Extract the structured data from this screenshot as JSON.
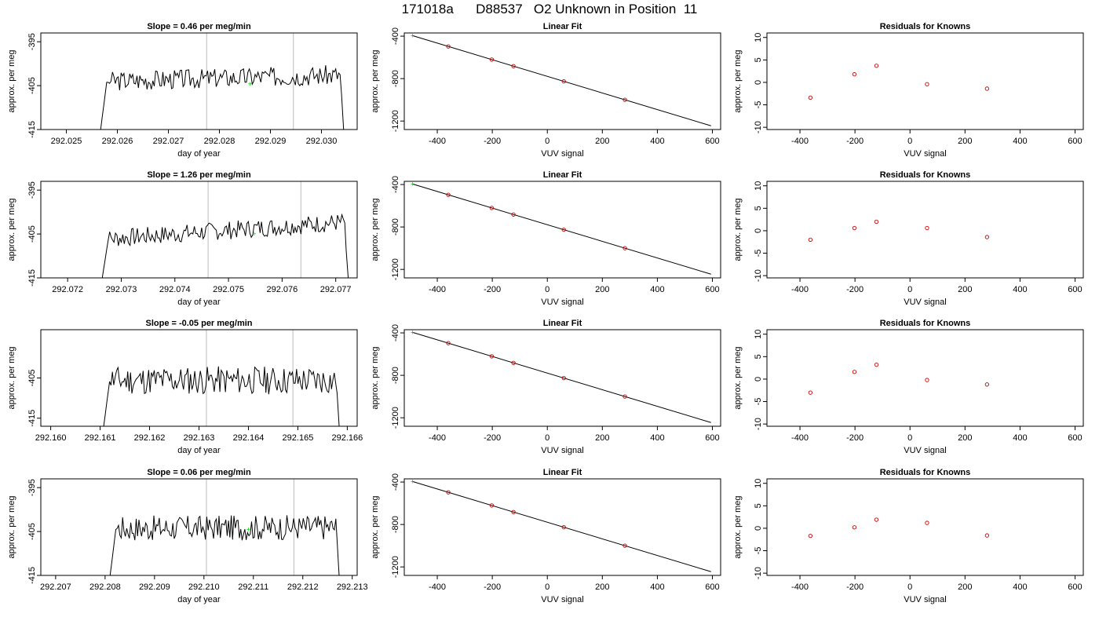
{
  "title": "171018a      D88537   O2 Unknown in Position  11",
  "colors": {
    "series": "#000000",
    "fit": "#000000",
    "unknown": "#00cc00",
    "known": "#cc0000",
    "vline": "#bbbbbb"
  },
  "chart_data": [
    {
      "type": "line",
      "row": 1,
      "column": "time-series",
      "title": "Slope =  0.46  per meg/min",
      "xlabel": "day of year",
      "ylabel": "approx. per meg",
      "xlim": [
        292.0245,
        292.0307
      ],
      "ylim": [
        -415,
        -393
      ],
      "xticks": [
        292.025,
        292.026,
        292.027,
        292.028,
        292.029,
        292.03
      ],
      "xtick_labels": [
        "292.025",
        "292.026",
        "292.027",
        "292.028",
        "292.029",
        "292.030"
      ],
      "yticks": [
        -395,
        -405,
        -415
      ],
      "ytick_labels": [
        "-395",
        "-405",
        "-415"
      ],
      "trace_start": 292.02565,
      "trace_end": 292.03045,
      "plateau_level": -404.0,
      "plateau_rise": 1.5,
      "noise": 1.4,
      "seed": 3,
      "vlines": [
        292.02775,
        292.02945
      ],
      "unknown_marker": {
        "x": 292.0286,
        "y": -404.6
      }
    },
    {
      "type": "line",
      "row": 1,
      "column": "linear-fit",
      "title": "Linear Fit",
      "xlabel": "VUV signal",
      "ylabel": "approx. per meg",
      "xlim": [
        -520,
        630
      ],
      "ylim": [
        -1280,
        -370
      ],
      "xticks": [
        -400,
        -200,
        0,
        200,
        400,
        600
      ],
      "xtick_labels": [
        "-400",
        "-200",
        "0",
        "200",
        "400",
        "600"
      ],
      "yticks": [
        -400,
        -800,
        -1200
      ],
      "ytick_labels": [
        "-400",
        "-800",
        "-1200"
      ],
      "fit_line": {
        "x": [
          -490,
          595
        ],
        "y": [
          -395,
          -1245
        ]
      },
      "known_points": {
        "x": [
          -360,
          -202,
          -123,
          60,
          282
        ],
        "y": [
          -497,
          -621,
          -683,
          -826,
          -1000
        ]
      },
      "unknown_point": {
        "x": -490,
        "y": -395
      }
    },
    {
      "type": "scatter",
      "row": 1,
      "column": "residuals",
      "title": "Residuals for Knowns",
      "xlabel": "VUV signal",
      "ylabel": "approx. per meg",
      "xlim": [
        -520,
        630
      ],
      "ylim": [
        -10.5,
        11
      ],
      "xticks": [
        -400,
        -200,
        0,
        200,
        400,
        600
      ],
      "xtick_labels": [
        "-400",
        "-200",
        "0",
        "200",
        "400",
        "600"
      ],
      "yticks": [
        10,
        5,
        0,
        -5,
        -10
      ],
      "ytick_labels": [
        "10",
        "5",
        "0",
        "-5",
        "-10"
      ],
      "points": {
        "x": [
          -362,
          -202,
          -122,
          62,
          280
        ],
        "y": [
          -3.4,
          1.8,
          3.7,
          -0.4,
          -1.4
        ]
      }
    },
    {
      "type": "line",
      "row": 2,
      "column": "time-series",
      "title": "Slope =  1.26  per meg/min",
      "xlabel": "day of year",
      "ylabel": "approx. per meg",
      "xlim": [
        292.0715,
        292.0774
      ],
      "ylim": [
        -415,
        -393
      ],
      "xticks": [
        292.072,
        292.073,
        292.074,
        292.075,
        292.076,
        292.077
      ],
      "xtick_labels": [
        "292.072",
        "292.073",
        "292.074",
        "292.075",
        "292.076",
        "292.077"
      ],
      "yticks": [
        -395,
        -405,
        -415
      ],
      "ytick_labels": [
        "-395",
        "-405",
        "-415"
      ],
      "trace_start": 292.07262,
      "trace_end": 292.07725,
      "plateau_level": -406.2,
      "plateau_rise": 4.0,
      "noise": 1.3,
      "seed": 7,
      "vlines": [
        292.07462,
        292.07635
      ],
      "unknown_marker": {
        "x": 292.07548,
        "y": -405.0
      }
    },
    {
      "type": "line",
      "row": 2,
      "column": "linear-fit",
      "title": "Linear Fit",
      "xlabel": "VUV signal",
      "ylabel": "approx. per meg",
      "xlim": [
        -520,
        630
      ],
      "ylim": [
        -1280,
        -370
      ],
      "xticks": [
        -400,
        -200,
        0,
        200,
        400,
        600
      ],
      "xtick_labels": [
        "-400",
        "-200",
        "0",
        "200",
        "400",
        "600"
      ],
      "yticks": [
        -400,
        -800,
        -1200
      ],
      "ytick_labels": [
        "-400",
        "-800",
        "-1200"
      ],
      "fit_line": {
        "x": [
          -490,
          595
        ],
        "y": [
          -395,
          -1245
        ]
      },
      "known_points": {
        "x": [
          -360,
          -202,
          -123,
          60,
          282
        ],
        "y": [
          -497,
          -621,
          -683,
          -826,
          -1000
        ]
      },
      "unknown_point": {
        "x": -490,
        "y": -395
      }
    },
    {
      "type": "scatter",
      "row": 2,
      "column": "residuals",
      "title": "Residuals for Knowns",
      "xlabel": "VUV signal",
      "ylabel": "approx. per meg",
      "xlim": [
        -520,
        630
      ],
      "ylim": [
        -10.5,
        11
      ],
      "xticks": [
        -400,
        -200,
        0,
        200,
        400,
        600
      ],
      "xtick_labels": [
        "-400",
        "-200",
        "0",
        "200",
        "400",
        "600"
      ],
      "yticks": [
        10,
        5,
        0,
        -5,
        -10
      ],
      "ytick_labels": [
        "10",
        "5",
        "0",
        "-5",
        "-10"
      ],
      "points": {
        "x": [
          -362,
          -202,
          -122,
          62,
          280
        ],
        "y": [
          -2.0,
          0.6,
          2.0,
          0.6,
          -1.4
        ]
      }
    },
    {
      "type": "line",
      "row": 3,
      "column": "time-series",
      "title": "Slope =  -0.05  per meg/min",
      "xlabel": "day of year",
      "ylabel": "approx. per meg",
      "xlim": [
        292.1598,
        292.1662
      ],
      "ylim": [
        -417,
        -393
      ],
      "xticks": [
        292.16,
        292.161,
        292.162,
        292.163,
        292.164,
        292.165,
        292.166
      ],
      "xtick_labels": [
        "292.160",
        "292.161",
        "292.162",
        "292.163",
        "292.164",
        "292.165",
        "292.166"
      ],
      "yticks": [
        -405,
        -415
      ],
      "ytick_labels": [
        "-405",
        "-415"
      ],
      "trace_start": 292.16105,
      "trace_end": 292.16585,
      "plateau_level": -405.6,
      "plateau_rise": 0.0,
      "noise": 2.2,
      "seed": 11,
      "vlines": [
        292.16315,
        292.1649
      ],
      "unknown_marker": {
        "x": 292.16402,
        "y": -405.8
      }
    },
    {
      "type": "line",
      "row": 3,
      "column": "linear-fit",
      "title": "Linear Fit",
      "xlabel": "VUV signal",
      "ylabel": "approx. per meg",
      "xlim": [
        -520,
        630
      ],
      "ylim": [
        -1280,
        -370
      ],
      "xticks": [
        -400,
        -200,
        0,
        200,
        400,
        600
      ],
      "xtick_labels": [
        "-400",
        "-200",
        "0",
        "200",
        "400",
        "600"
      ],
      "yticks": [
        -400,
        -800,
        -1200
      ],
      "ytick_labels": [
        "-400",
        "-800",
        "-1200"
      ],
      "fit_line": {
        "x": [
          -490,
          595
        ],
        "y": [
          -395,
          -1245
        ]
      },
      "known_points": {
        "x": [
          -360,
          -202,
          -123,
          60,
          282
        ],
        "y": [
          -497,
          -621,
          -683,
          -826,
          -1000
        ]
      },
      "unknown_point": {
        "x": -490,
        "y": -395
      }
    },
    {
      "type": "scatter",
      "row": 3,
      "column": "residuals",
      "title": "Residuals for Knowns",
      "xlabel": "VUV signal",
      "ylabel": "approx. per meg",
      "xlim": [
        -520,
        630
      ],
      "ylim": [
        -10.5,
        11
      ],
      "xticks": [
        -400,
        -200,
        0,
        200,
        400,
        600
      ],
      "xtick_labels": [
        "-400",
        "-200",
        "0",
        "200",
        "400",
        "600"
      ],
      "yticks": [
        10,
        5,
        0,
        -5,
        -10
      ],
      "ytick_labels": [
        "10",
        "5",
        "0",
        "-5",
        "-10"
      ],
      "points": {
        "x": [
          -362,
          -202,
          -122,
          62,
          280
        ],
        "y": [
          -3.0,
          1.6,
          3.2,
          -0.2,
          -1.2
        ]
      }
    },
    {
      "type": "line",
      "row": 4,
      "column": "time-series",
      "title": "Slope =  0.06  per meg/min",
      "xlabel": "day of year",
      "ylabel": "approx. per meg",
      "xlim": [
        292.2067,
        292.2131
      ],
      "ylim": [
        -415,
        -393
      ],
      "xticks": [
        292.207,
        292.208,
        292.209,
        292.21,
        292.211,
        292.212,
        292.213
      ],
      "xtick_labels": [
        "292.207",
        "292.208",
        "292.209",
        "292.210",
        "292.211",
        "292.212",
        "292.213"
      ],
      "yticks": [
        -395,
        -405,
        -415
      ],
      "ytick_labels": [
        "-395",
        "-405",
        "-415"
      ],
      "trace_start": 292.20808,
      "trace_end": 292.21275,
      "plateau_level": -404.3,
      "plateau_rise": 0.3,
      "noise": 1.8,
      "seed": 17,
      "vlines": [
        292.21005,
        292.21182
      ],
      "unknown_marker": {
        "x": 292.2109,
        "y": -404.5
      }
    },
    {
      "type": "line",
      "row": 4,
      "column": "linear-fit",
      "title": "Linear Fit",
      "xlabel": "VUV signal",
      "ylabel": "approx. per meg",
      "xlim": [
        -520,
        630
      ],
      "ylim": [
        -1280,
        -370
      ],
      "xticks": [
        -400,
        -200,
        0,
        200,
        400,
        600
      ],
      "xtick_labels": [
        "-400",
        "-200",
        "0",
        "200",
        "400",
        "600"
      ],
      "yticks": [
        -400,
        -800,
        -1200
      ],
      "ytick_labels": [
        "-400",
        "-800",
        "-1200"
      ],
      "fit_line": {
        "x": [
          -490,
          595
        ],
        "y": [
          -395,
          -1245
        ]
      },
      "known_points": {
        "x": [
          -360,
          -202,
          -123,
          60,
          282
        ],
        "y": [
          -497,
          -621,
          -683,
          -826,
          -1000
        ]
      },
      "unknown_point": {
        "x": -490,
        "y": -395
      }
    },
    {
      "type": "scatter",
      "row": 4,
      "column": "residuals",
      "title": "Residuals for Knowns",
      "xlabel": "VUV signal",
      "ylabel": "approx. per meg",
      "xlim": [
        -520,
        630
      ],
      "ylim": [
        -10.5,
        11
      ],
      "xticks": [
        -400,
        -200,
        0,
        200,
        400,
        600
      ],
      "xtick_labels": [
        "-400",
        "-200",
        "0",
        "200",
        "400",
        "600"
      ],
      "yticks": [
        10,
        5,
        0,
        -5,
        -10
      ],
      "ytick_labels": [
        "10",
        "5",
        "0",
        "-5",
        "-10"
      ],
      "points": {
        "x": [
          -362,
          -202,
          -122,
          62,
          280
        ],
        "y": [
          -1.7,
          0.2,
          1.9,
          1.2,
          -1.6
        ]
      }
    }
  ]
}
